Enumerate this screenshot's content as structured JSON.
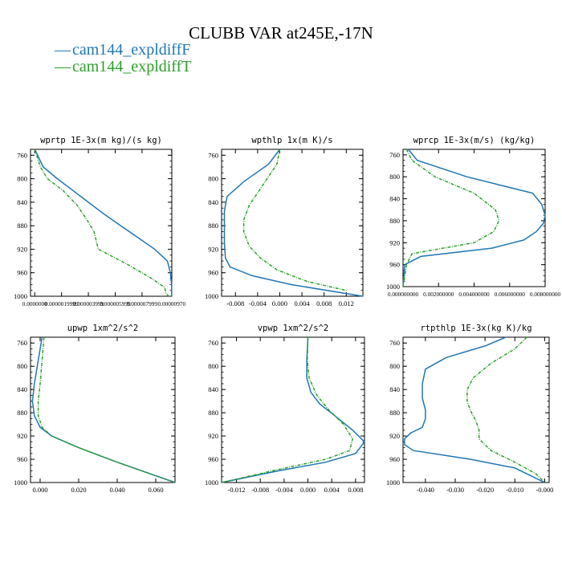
{
  "figure": {
    "title": "CLUBB VAR at245E,-17N",
    "legend_marker": "—",
    "legend": [
      {
        "name": "cam144_expldiffF",
        "color": "#1f77b4"
      },
      {
        "name": "cam144_expldiffT",
        "color": "#2ca02c"
      }
    ]
  },
  "chart_data": [
    {
      "type": "line",
      "title": "wprtp  1E-3x(m kg)/(s kg)",
      "ylim": [
        1000,
        750
      ],
      "yticks": [
        760,
        800,
        840,
        880,
        920,
        960,
        1000
      ],
      "xlim": [
        -3e-07,
        9.71e-06
      ],
      "xticks": [
        0.0,
        1.9e-06,
        3.8e-06,
        5.7e-06,
        7.6e-06,
        9.7e-06
      ],
      "xtick_labels": [
        "0.0000000",
        "0.0000019999",
        "0.000003999",
        "0.000005999",
        "0.000007999",
        "0.00000970"
      ],
      "series": [
        {
          "name": "cam144_expldiffF",
          "color": "#1f77b4",
          "dashed": false,
          "x": [
            0.0,
            6e-07,
            1.6e-06,
            2.7e-06,
            3.8e-06,
            4.9e-06,
            6.1e-06,
            7.3e-06,
            8.5e-06,
            9.4e-06,
            9.6e-06,
            9.7e-06,
            9.7e-06
          ],
          "y": [
            750,
            780,
            800,
            820,
            840,
            860,
            880,
            900,
            920,
            940,
            960,
            980,
            1000
          ]
        },
        {
          "name": "cam144_expldiffT",
          "color": "#2ca02c",
          "dashed": true,
          "x": [
            0.0,
            4e-07,
            9e-07,
            2e-06,
            3e-06,
            3.7e-06,
            4.2e-06,
            4.5e-06,
            6.5e-06,
            8.3e-06,
            9.2e-06,
            9.3e-06,
            9.5e-06
          ],
          "y": [
            750,
            780,
            800,
            820,
            845,
            870,
            890,
            920,
            945,
            970,
            985,
            995,
            1000
          ]
        }
      ]
    },
    {
      "type": "line",
      "title": "wpthlp  1x(m K)/s",
      "ylim": [
        1000,
        750
      ],
      "yticks": [
        760,
        800,
        840,
        880,
        920,
        960,
        1000
      ],
      "xlim": [
        -0.0105,
        0.015
      ],
      "xticks": [
        -0.008,
        -0.004,
        0.0,
        0.004,
        0.008,
        0.012
      ],
      "xtick_labels": [
        "-0.008",
        "-0.004",
        "0.000",
        "0.004",
        "0.008",
        "0.012"
      ],
      "series": [
        {
          "name": "cam144_expldiffF",
          "color": "#1f77b4",
          "dashed": false,
          "x": [
            0.0,
            -0.002,
            -0.0065,
            -0.0095,
            -0.01,
            -0.01,
            -0.01,
            -0.0098,
            -0.009,
            -0.005,
            0.002,
            0.015
          ],
          "y": [
            750,
            775,
            805,
            830,
            855,
            880,
            910,
            935,
            950,
            965,
            980,
            1000
          ]
        },
        {
          "name": "cam144_expldiffT",
          "color": "#2ca02c",
          "dashed": true,
          "x": [
            0.0,
            -0.0005,
            -0.003,
            -0.0055,
            -0.0065,
            -0.0065,
            -0.0055,
            -0.0035,
            -0.0005,
            0.005,
            0.012
          ],
          "y": [
            750,
            775,
            810,
            845,
            870,
            890,
            915,
            935,
            955,
            975,
            990
          ]
        }
      ]
    },
    {
      "type": "line",
      "title": "wprcp  1E-3x(m/s) (kg/kg)",
      "ylim": [
        1000,
        750
      ],
      "yticks": [
        760,
        800,
        840,
        880,
        920,
        960,
        1000
      ],
      "xlim": [
        0.0,
        0.008
      ],
      "xticks": [
        0.0,
        0.002,
        0.004,
        0.006,
        0.008
      ],
      "xtick_labels": [
        "0.000000000",
        "0.002000000",
        "0.004000000",
        "0.006000000",
        "0.008000000"
      ],
      "series": [
        {
          "name": "cam144_expldiffF",
          "color": "#1f77b4",
          "dashed": false,
          "x": [
            0.0003,
            0.0008,
            0.0036,
            0.0073,
            0.0078,
            0.008,
            0.0079,
            0.0075,
            0.0068,
            0.005,
            0.001,
            0.0001,
            0.0
          ],
          "y": [
            750,
            770,
            800,
            830,
            850,
            870,
            885,
            900,
            915,
            930,
            945,
            960,
            1000
          ]
        },
        {
          "name": "cam144_expldiffT",
          "color": "#2ca02c",
          "dashed": true,
          "x": [
            0.0002,
            0.0005,
            0.0018,
            0.004,
            0.0052,
            0.0054,
            0.0051,
            0.004,
            0.0005,
            0.0002,
            0.0
          ],
          "y": [
            750,
            770,
            800,
            830,
            860,
            880,
            900,
            920,
            940,
            960,
            1000
          ]
        }
      ]
    },
    {
      "type": "line",
      "title": "upwp  1xm^2/s^2",
      "ylim": [
        1000,
        750
      ],
      "yticks": [
        760,
        800,
        840,
        880,
        920,
        960,
        1000
      ],
      "xlim": [
        -0.005,
        0.07
      ],
      "xticks": [
        0.0,
        0.02,
        0.04,
        0.06
      ],
      "xtick_labels": [
        "0.000",
        "0.020",
        "0.040",
        "0.060"
      ],
      "series": [
        {
          "name": "cam144_expldiffF",
          "color": "#1f77b4",
          "dashed": false,
          "x": [
            0.001,
            -0.001,
            -0.003,
            -0.004,
            -0.003,
            0.0,
            0.006,
            0.02,
            0.04,
            0.07
          ],
          "y": [
            750,
            790,
            830,
            860,
            885,
            905,
            920,
            940,
            965,
            1000
          ]
        },
        {
          "name": "cam144_expldiffT",
          "color": "#2ca02c",
          "dashed": true,
          "x": [
            0.002,
            0.001,
            0.0,
            -0.001,
            -0.001,
            0.001,
            0.006,
            0.02,
            0.04,
            0.07
          ],
          "y": [
            750,
            790,
            830,
            860,
            885,
            905,
            920,
            940,
            965,
            1000
          ]
        }
      ]
    },
    {
      "type": "line",
      "title": "vpwp  1xm^2/s^2",
      "ylim": [
        1000,
        750
      ],
      "yticks": [
        760,
        800,
        840,
        880,
        920,
        960,
        1000
      ],
      "xlim": [
        -0.0145,
        0.0095
      ],
      "xticks": [
        -0.012,
        -0.008,
        -0.004,
        0.0,
        0.004,
        0.008
      ],
      "xtick_labels": [
        "-0.012",
        "-0.008",
        "-0.004",
        "0.000",
        "0.004",
        "0.008"
      ],
      "series": [
        {
          "name": "cam144_expldiffF",
          "color": "#1f77b4",
          "dashed": false,
          "x": [
            0.0,
            -0.0002,
            -0.0002,
            0.0005,
            0.002,
            0.0045,
            0.0075,
            0.0095,
            0.008,
            0.003,
            -0.005,
            -0.0145
          ],
          "y": [
            750,
            790,
            820,
            845,
            865,
            885,
            910,
            930,
            950,
            965,
            980,
            1000
          ]
        },
        {
          "name": "cam144_expldiffT",
          "color": "#2ca02c",
          "dashed": true,
          "x": [
            0.0,
            -0.0001,
            0.0002,
            0.0015,
            0.0035,
            0.006,
            0.0075,
            0.007,
            0.003,
            -0.006,
            -0.0145
          ],
          "y": [
            750,
            790,
            820,
            850,
            875,
            900,
            925,
            945,
            960,
            980,
            1000
          ]
        }
      ]
    },
    {
      "type": "line",
      "title": "rtpthlp  1E-3x(kg K)/kg",
      "ylim": [
        1000,
        750
      ],
      "yticks": [
        760,
        800,
        840,
        880,
        920,
        960,
        1000
      ],
      "xlim": [
        -0.0475,
        0.0015
      ],
      "xticks": [
        -0.04,
        -0.03,
        -0.02,
        -0.01,
        0.0
      ],
      "xtick_labels": [
        "-0.040",
        "-0.030",
        "-0.020",
        "-0.010",
        "-0.000"
      ],
      "series": [
        {
          "name": "cam144_expldiffF",
          "color": "#1f77b4",
          "dashed": false,
          "x": [
            -0.013,
            -0.02,
            -0.033,
            -0.04,
            -0.041,
            -0.041,
            -0.04,
            -0.04,
            -0.041,
            -0.045,
            -0.047,
            -0.047,
            -0.044,
            -0.025,
            -0.01,
            0.0
          ],
          "y": [
            750,
            765,
            785,
            805,
            830,
            855,
            875,
            890,
            905,
            915,
            925,
            935,
            945,
            960,
            975,
            1000
          ]
        },
        {
          "name": "cam144_expldiffT",
          "color": "#2ca02c",
          "dashed": true,
          "x": [
            -0.006,
            -0.01,
            -0.018,
            -0.024,
            -0.026,
            -0.026,
            -0.025,
            -0.023,
            -0.022,
            -0.022,
            -0.018,
            -0.01,
            -0.003,
            0.0
          ],
          "y": [
            750,
            770,
            795,
            820,
            840,
            860,
            875,
            895,
            910,
            925,
            945,
            965,
            985,
            1000
          ]
        }
      ]
    }
  ]
}
